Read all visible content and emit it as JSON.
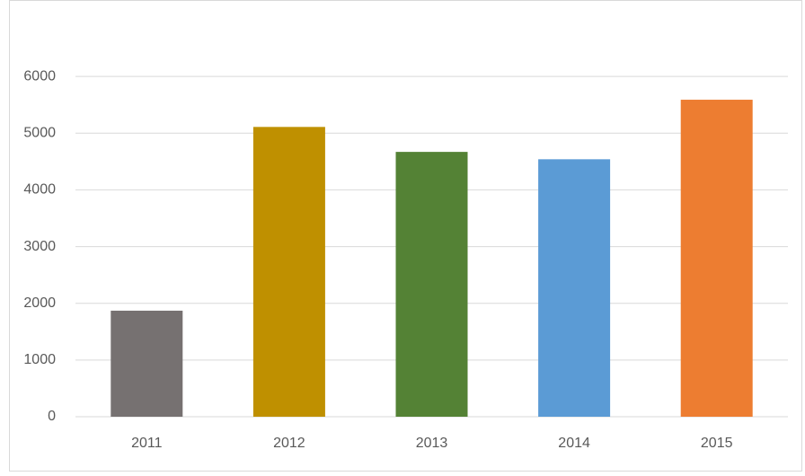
{
  "chart_data": {
    "type": "bar",
    "categories": [
      "2011",
      "2012",
      "2013",
      "2014",
      "2015"
    ],
    "values": [
      1870,
      5110,
      4670,
      4540,
      5590
    ],
    "colors": [
      "#767171",
      "#bf9000",
      "#548235",
      "#5b9bd5",
      "#ed7d31"
    ],
    "ylim": [
      0,
      7000
    ],
    "yticks": [
      0,
      1000,
      2000,
      3000,
      4000,
      5000,
      6000
    ],
    "grid": true
  }
}
